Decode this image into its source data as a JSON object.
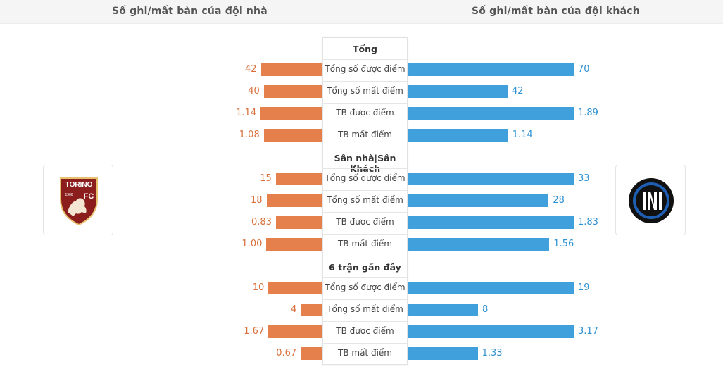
{
  "header": {
    "home_title": "Số ghi/mất bàn của đội nhà",
    "away_title": "Số ghi/mất bàn của đội khách"
  },
  "home_logo": {
    "text_top": "TORINO",
    "text_fc": "FC",
    "text_year": "1906"
  },
  "away_logo": {
    "icon": "inter-logo-icon"
  },
  "colors": {
    "home": "#e57f4c",
    "away": "#3fa0dc"
  },
  "sections": [
    {
      "title": "Tổng",
      "rows": [
        {
          "label": "Tổng số được điểm",
          "home": "42",
          "away": "70"
        },
        {
          "label": "Tổng số mất điểm",
          "home": "40",
          "away": "42"
        },
        {
          "label": "TB được điểm",
          "home": "1.14",
          "away": "1.89"
        },
        {
          "label": "TB mất điểm",
          "home": "1.08",
          "away": "1.14"
        }
      ]
    },
    {
      "title": "Sân nhà|Sân Khách",
      "rows": [
        {
          "label": "Tổng số được điểm",
          "home": "15",
          "away": "33"
        },
        {
          "label": "Tổng số mất điểm",
          "home": "18",
          "away": "28"
        },
        {
          "label": "TB được điểm",
          "home": "0.83",
          "away": "1.83"
        },
        {
          "label": "TB mất điểm",
          "home": "1.00",
          "away": "1.56"
        }
      ]
    },
    {
      "title": "6 trận gần đây",
      "rows": [
        {
          "label": "Tổng số được điểm",
          "home": "10",
          "away": "19"
        },
        {
          "label": "Tổng số mất điểm",
          "home": "4",
          "away": "8"
        },
        {
          "label": "TB được điểm",
          "home": "1.67",
          "away": "3.17"
        },
        {
          "label": "TB mất điểm",
          "home": "0.67",
          "away": "1.33"
        }
      ]
    }
  ]
}
